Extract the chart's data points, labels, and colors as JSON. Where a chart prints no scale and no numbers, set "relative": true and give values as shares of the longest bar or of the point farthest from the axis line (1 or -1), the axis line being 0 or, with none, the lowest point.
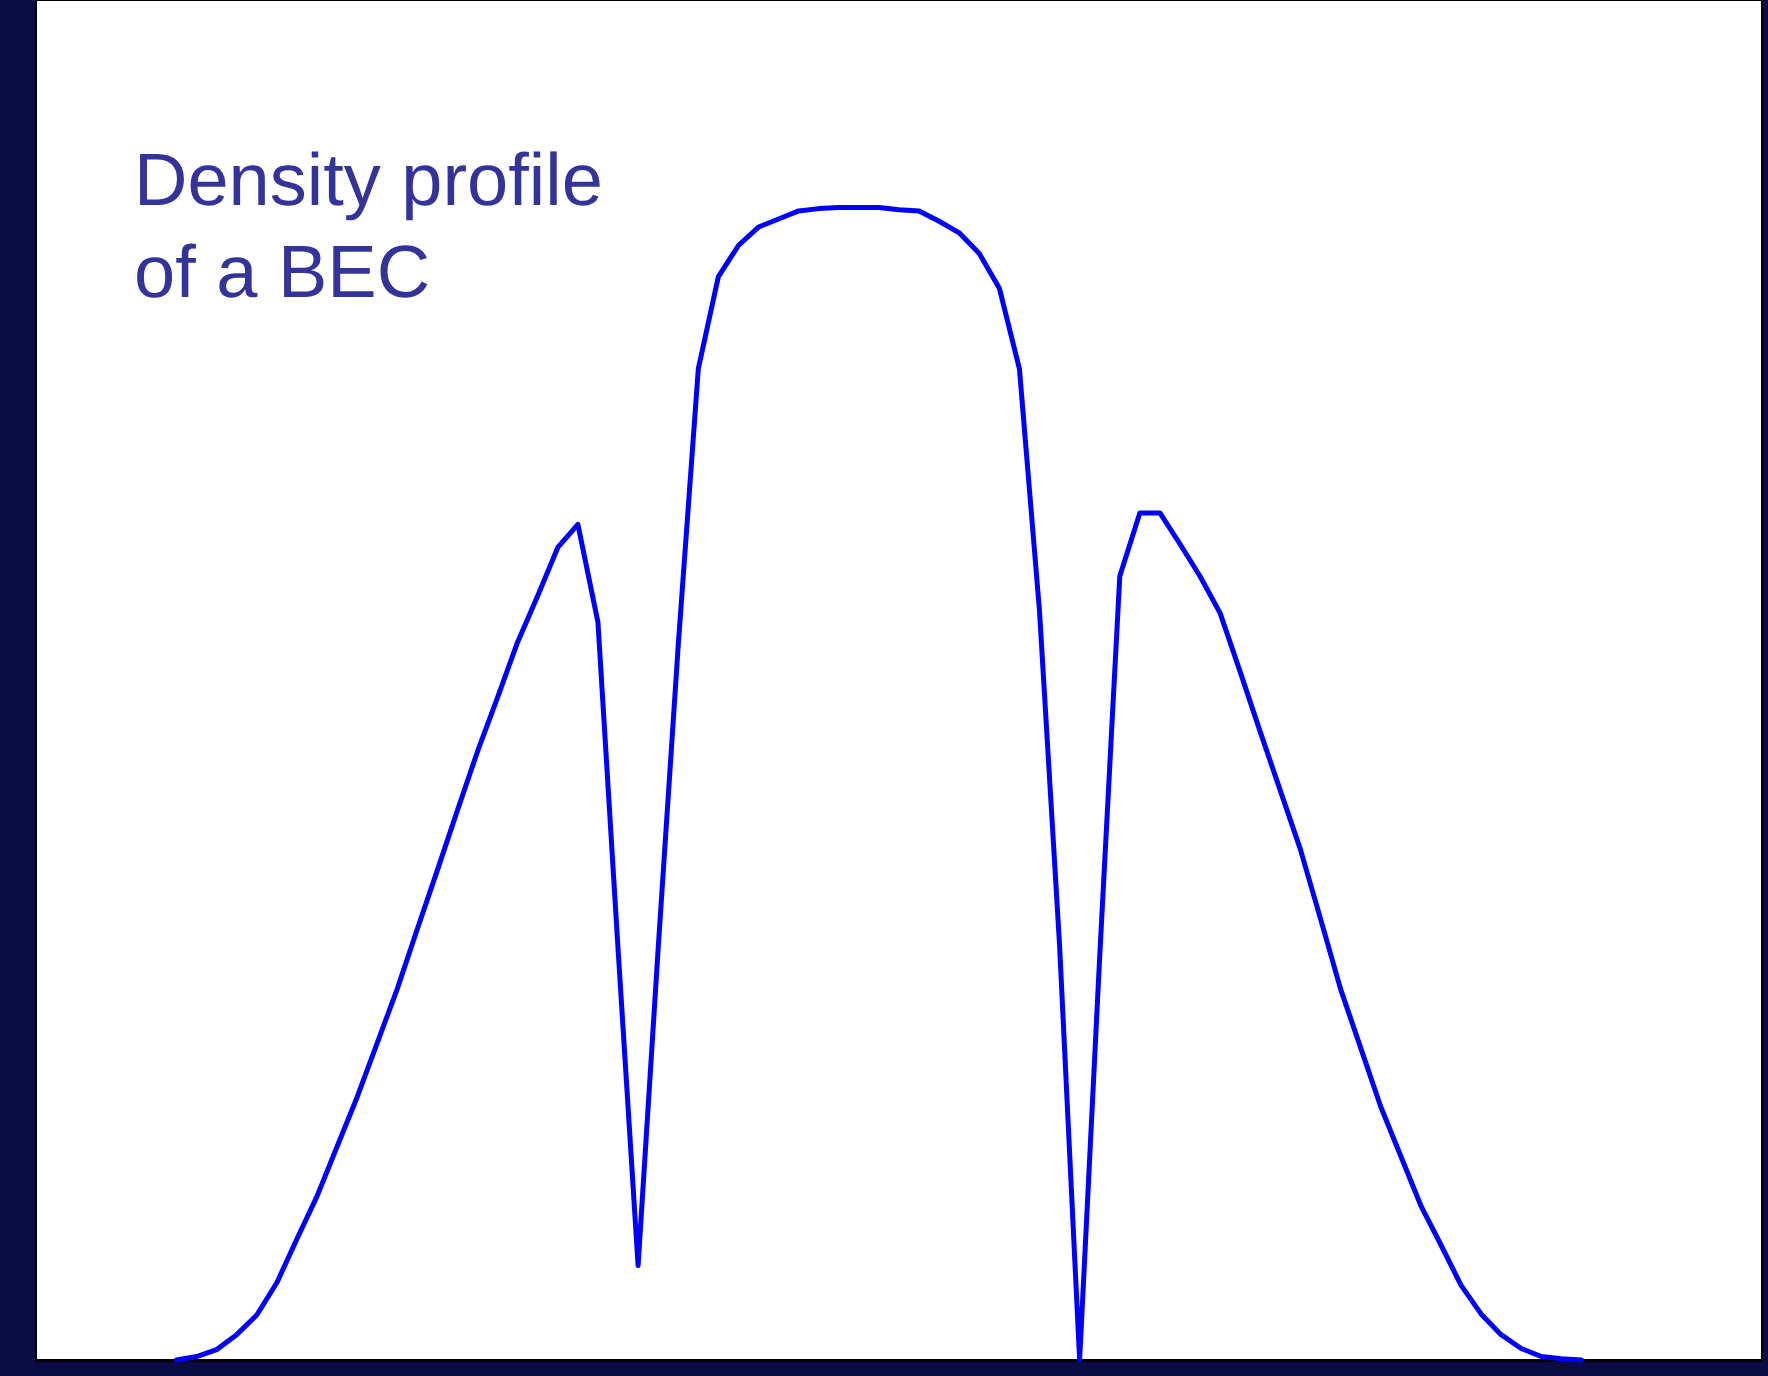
{
  "chart_data": {
    "type": "line",
    "title": "Density profile of a BEC",
    "relative": true,
    "categories": [
      null,
      null,
      null,
      null,
      null,
      null,
      null,
      null,
      null,
      null,
      null,
      null,
      null,
      null,
      null,
      null,
      null,
      null,
      null,
      null,
      null,
      null,
      null,
      null,
      null,
      null,
      null,
      null,
      null,
      null,
      null,
      null,
      null,
      null,
      null,
      null,
      null,
      null,
      null,
      null,
      null,
      null,
      null,
      null,
      null,
      null,
      null,
      null,
      null,
      null,
      null,
      null,
      null,
      null,
      null,
      null,
      null,
      null,
      null,
      null,
      null,
      null,
      null,
      null,
      null,
      null,
      null,
      null,
      null,
      null,
      null,
      null,
      null,
      null,
      null,
      null,
      null,
      null,
      null,
      null,
      null,
      null,
      null,
      null,
      null,
      null,
      null
    ],
    "series": [
      {
        "color": "#0000ff",
        "values": [
          null,
          null,
          null,
          null,
          null,
          null,
          null,
          0,
          0.003,
          0.009,
          0.022,
          0.039,
          0.067,
          0.105,
          0.142,
          0.185,
          0.228,
          0.275,
          0.322,
          0.374,
          0.425,
          0.477,
          0.528,
          0.575,
          0.623,
          0.663,
          0.705,
          0.725,
          0.64,
          0.357,
          0.082,
          0.357,
          0.62,
          0.86,
          0.94,
          0.967,
          0.983,
          0.99,
          0.997,
          0.999,
          1,
          1,
          1,
          0.998,
          0.997,
          0.988,
          0.978,
          0.96,
          0.93,
          0.86,
          0.65,
          0.36,
          0,
          0.35,
          0.68,
          0.735,
          0.735,
          0.708,
          0.68,
          0.648,
          0.597,
          0.545,
          0.494,
          0.443,
          0.383,
          0.322,
          0.271,
          0.22,
          0.177,
          0.134,
          0.1,
          0.065,
          0.04,
          0.022,
          0.01,
          0.003,
          0.001,
          0,
          null,
          null,
          null,
          null,
          null,
          null,
          null,
          null,
          null
        ]
      }
    ],
    "grid": false,
    "marker": "none",
    "line_style": "solid"
  }
}
